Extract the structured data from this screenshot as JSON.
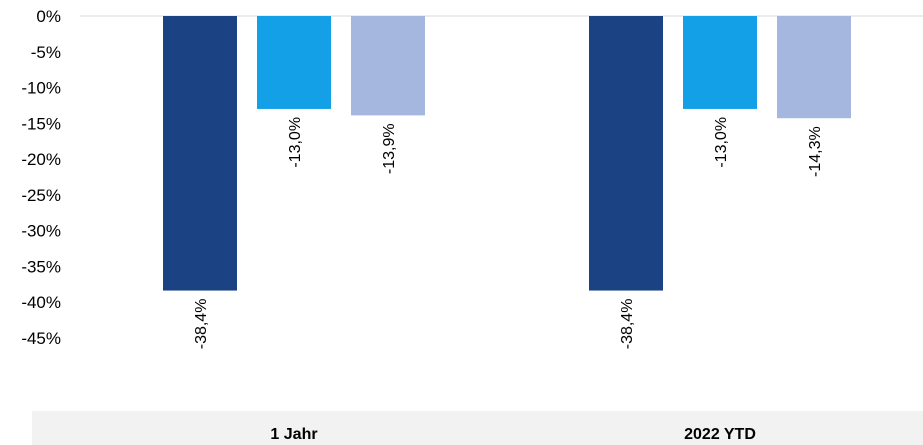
{
  "chart_data": {
    "type": "bar",
    "categories": [
      "1 Jahr",
      "2022 YTD"
    ],
    "series": [
      {
        "values": [
          -38.4,
          -38.4
        ],
        "labels": [
          "-38,4%",
          "-38,4%"
        ],
        "color": "#1b4383"
      },
      {
        "values": [
          -13.0,
          -13.0
        ],
        "labels": [
          "-13,0%",
          "-13,0%"
        ],
        "color": "#14a0e6"
      },
      {
        "values": [
          -13.9,
          -14.3
        ],
        "labels": [
          "-13,9%",
          "-14,3%"
        ],
        "color": "#a6b7df"
      }
    ],
    "yticks": [
      "0%",
      "-5%",
      "-10%",
      "-15%",
      "-20%",
      "-25%",
      "-30%",
      "-35%",
      "-40%",
      "-45%"
    ],
    "ylim": [
      -45,
      0
    ],
    "grid": false,
    "legend": "none"
  }
}
